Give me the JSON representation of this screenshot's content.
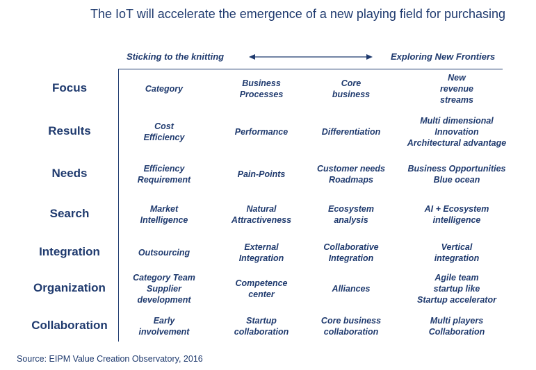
{
  "title": "The IoT will accelerate the emergence of a new playing field for purchasing",
  "header": {
    "left": "Sticking to the  knitting",
    "right": "Exploring  New Frontiers"
  },
  "rows": [
    {
      "label": "Focus",
      "cells": [
        "Category",
        "Business\nProcesses",
        "Core\nbusiness",
        "New\nrevenue\nstreams"
      ]
    },
    {
      "label": "Results",
      "cells": [
        "Cost\nEfficiency",
        "Performance",
        "Differentiation",
        "Multi dimensional\nInnovation\nArchitectural advantage"
      ]
    },
    {
      "label": "Needs",
      "cells": [
        "Efficiency\nRequirement",
        "Pain-Points",
        "Customer needs\nRoadmaps",
        "Business Opportunities\nBlue ocean"
      ]
    },
    {
      "label": "Search",
      "cells": [
        "Market\nIntelligence",
        "Natural\nAttractiveness",
        "Ecosystem\nanalysis",
        "AI + Ecosystem\nintelligence"
      ]
    },
    {
      "label": "Integration",
      "cells": [
        "Outsourcing",
        "External\nIntegration",
        "Collaborative\nIntegration",
        "Vertical\nintegration"
      ]
    },
    {
      "label": "Organization",
      "cells": [
        "Category Team\nSupplier\ndevelopment",
        "Competence\ncenter",
        "Alliances",
        "Agile team\nstartup like\nStartup accelerator"
      ]
    },
    {
      "label": "Collaboration",
      "cells": [
        "Early\ninvolvement",
        "Startup\ncollaboration",
        "Core business\ncollaboration",
        "Multi players\nCollaboration"
      ]
    }
  ],
  "source": "Source: EIPM Value Creation Observatory, 2016"
}
